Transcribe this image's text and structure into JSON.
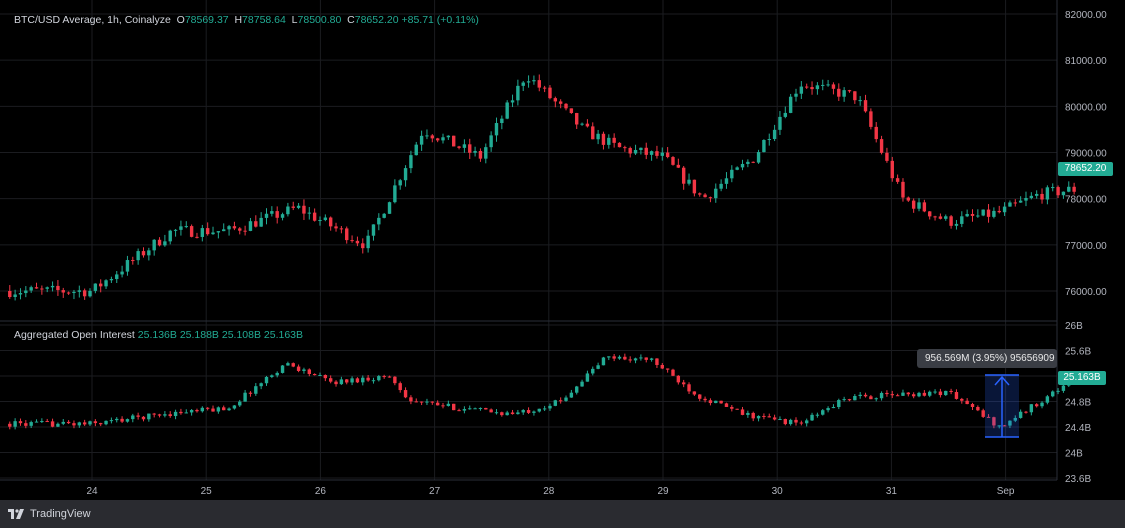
{
  "price_legend": {
    "symbol": "BTC/USD Average, 1h, Coinalyze",
    "open": "78569.37",
    "high": "78758.64",
    "low": "78500.80",
    "close": "78652.20",
    "change": "+85.71 (+0.11%)"
  },
  "oi_legend": {
    "name": "Aggregated Open Interest",
    "v1": "25.136B",
    "v2": "25.188B",
    "v3": "25.108B",
    "v4": "25.163B"
  },
  "price_badge": "78652.20",
  "oi_badge": "25.163B",
  "measure_tooltip": "956.569M (3.95%) 9565690​9",
  "footer": {
    "brand": "TradingView"
  },
  "colors": {
    "up": "#22ab94",
    "down": "#f23645",
    "background": "#000000",
    "grid": "#1b1c20",
    "measure": "#2962ff"
  },
  "chart_data": [
    {
      "type": "candlestick",
      "title": "BTC/USD Average, 1h, Coinalyze",
      "x_ticks": [
        "24",
        "25",
        "26",
        "27",
        "28",
        "29",
        "30",
        "31",
        "Sep"
      ],
      "y_ticks": [
        "82000.00",
        "81000.00",
        "80000.00",
        "79000.00",
        "78000.00",
        "77000.00",
        "76000.00"
      ],
      "ylim": [
        75600,
        82000
      ],
      "last_value": 78652.2,
      "path_x": [
        0,
        0.7,
        1.2,
        1.8,
        2.4,
        2.9,
        3.4,
        3.8,
        4.3,
        4.6,
        5.0,
        5.35,
        5.8,
        6.2,
        6.7,
        7.1,
        7.5,
        7.95,
        8.3,
        8.6
      ],
      "path_y": [
        76000,
        77300,
        77300,
        77800,
        77000,
        79500,
        78900,
        80700,
        79500,
        79100,
        78900,
        78000,
        78900,
        80500,
        80200,
        78000,
        77500,
        77700,
        78100,
        78200
      ]
    },
    {
      "type": "candlestick",
      "title": "Aggregated Open Interest",
      "x_ticks": [
        "24",
        "25",
        "26",
        "27",
        "28",
        "29",
        "30",
        "31",
        "Sep"
      ],
      "y_ticks": [
        "26B",
        "25.6B",
        "25.2B",
        "24.8B",
        "24.4B",
        "24B",
        "23.6B"
      ],
      "ylim": [
        23.6,
        26.0
      ],
      "last_value": 25.163,
      "path_x": [
        0,
        0.6,
        1.2,
        1.7,
        2.1,
        2.6,
        2.8,
        3.2,
        3.7,
        4.1,
        4.5,
        4.9,
        5.3,
        5.7,
        6.2,
        6.6,
        7.0,
        7.5,
        7.95,
        8.3,
        8.6
      ],
      "path_y": [
        24.45,
        24.6,
        24.7,
        25.4,
        25.1,
        25.2,
        24.8,
        24.7,
        24.6,
        24.8,
        25.5,
        25.45,
        24.9,
        24.6,
        24.45,
        24.85,
        24.9,
        24.95,
        24.4,
        24.8,
        25.16
      ]
    }
  ]
}
